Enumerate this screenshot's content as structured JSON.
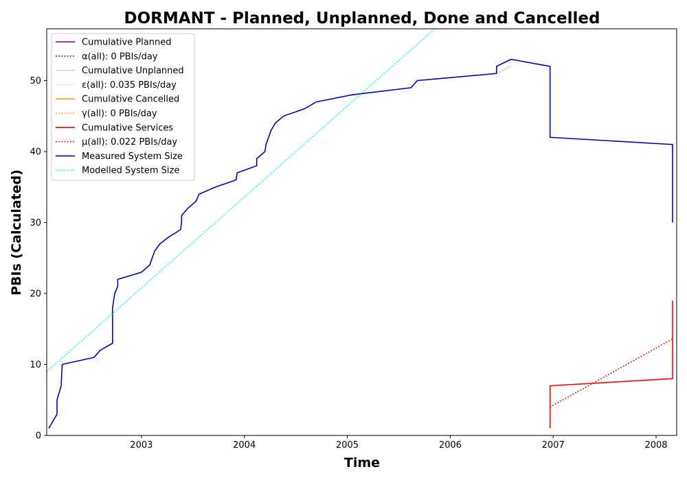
{
  "chart_data": {
    "type": "line",
    "title": "DORMANT - Planned, Unplanned, Done  and Cancelled",
    "xlabel": "Time",
    "ylabel": "PBIs (Calculated)",
    "xlim": [
      2002.08,
      2008.2
    ],
    "ylim": [
      0,
      57.3
    ],
    "xticks": [
      2003,
      2004,
      2005,
      2006,
      2007,
      2008
    ],
    "yticks": [
      0,
      10,
      20,
      30,
      40,
      50
    ],
    "grid": false,
    "legend_position": "upper-left",
    "series": [
      {
        "name": "Cumulative Planned",
        "color": "#800080",
        "style": "solid",
        "points": []
      },
      {
        "name": "α(all): 0 PBIs/day",
        "color": "#800080",
        "style": "dotted",
        "points": []
      },
      {
        "name": "Cumulative Unplanned",
        "color": "#ffc0cb",
        "style": "solid",
        "points": [
          [
            2006.45,
            51
          ],
          [
            2006.59,
            52
          ]
        ]
      },
      {
        "name": "ε(all): 0.035 PBIs/day",
        "color": "#ffc0cb",
        "style": "dotted",
        "points": []
      },
      {
        "name": "Cumulative Cancelled",
        "color": "#ffa500",
        "style": "solid",
        "points": []
      },
      {
        "name": "γ(all): 0 PBIs/day",
        "color": "#ffa500",
        "style": "dotted",
        "points": []
      },
      {
        "name": "Cumulative Services",
        "color": "#ff0000",
        "style": "solid",
        "points": [
          [
            2006.97,
            1
          ],
          [
            2006.97,
            7
          ],
          [
            2008.16,
            8
          ],
          [
            2008.16,
            19
          ]
        ]
      },
      {
        "name": "μ(all): 0.022 PBIs/day",
        "color": "#ff0000",
        "style": "dotted",
        "points": [
          [
            2006.97,
            4
          ],
          [
            2008.16,
            13.6
          ]
        ]
      },
      {
        "name": "Measured System Size",
        "color": "#0000cd",
        "style": "solid",
        "points": [
          [
            2002.1,
            1
          ],
          [
            2002.14,
            2
          ],
          [
            2002.18,
            3
          ],
          [
            2002.18,
            5
          ],
          [
            2002.22,
            7
          ],
          [
            2002.23,
            10
          ],
          [
            2002.54,
            11
          ],
          [
            2002.6,
            12
          ],
          [
            2002.72,
            13
          ],
          [
            2002.72,
            18
          ],
          [
            2002.74,
            20
          ],
          [
            2002.77,
            21
          ],
          [
            2002.77,
            22
          ],
          [
            2003.0,
            23
          ],
          [
            2003.08,
            24
          ],
          [
            2003.13,
            26
          ],
          [
            2003.18,
            27
          ],
          [
            2003.27,
            28
          ],
          [
            2003.38,
            29
          ],
          [
            2003.39,
            30
          ],
          [
            2003.39,
            31
          ],
          [
            2003.45,
            32
          ],
          [
            2003.53,
            33
          ],
          [
            2003.56,
            34
          ],
          [
            2003.72,
            35
          ],
          [
            2003.92,
            36
          ],
          [
            2003.93,
            37
          ],
          [
            2004.12,
            38
          ],
          [
            2004.12,
            39
          ],
          [
            2004.2,
            40
          ],
          [
            2004.21,
            41
          ],
          [
            2004.26,
            43
          ],
          [
            2004.3,
            44
          ],
          [
            2004.38,
            45
          ],
          [
            2004.58,
            46
          ],
          [
            2004.7,
            47
          ],
          [
            2005.05,
            48
          ],
          [
            2005.62,
            49
          ],
          [
            2005.68,
            50
          ],
          [
            2006.45,
            51
          ],
          [
            2006.45,
            52
          ],
          [
            2006.59,
            53
          ],
          [
            2006.97,
            52
          ],
          [
            2006.97,
            42
          ],
          [
            2008.16,
            41
          ],
          [
            2008.16,
            30
          ]
        ]
      },
      {
        "name": "Modelled System Size",
        "color": "#00ffff",
        "style": "dotted",
        "points": [
          [
            2002.08,
            9
          ],
          [
            2005.85,
            57.3
          ]
        ]
      }
    ]
  }
}
